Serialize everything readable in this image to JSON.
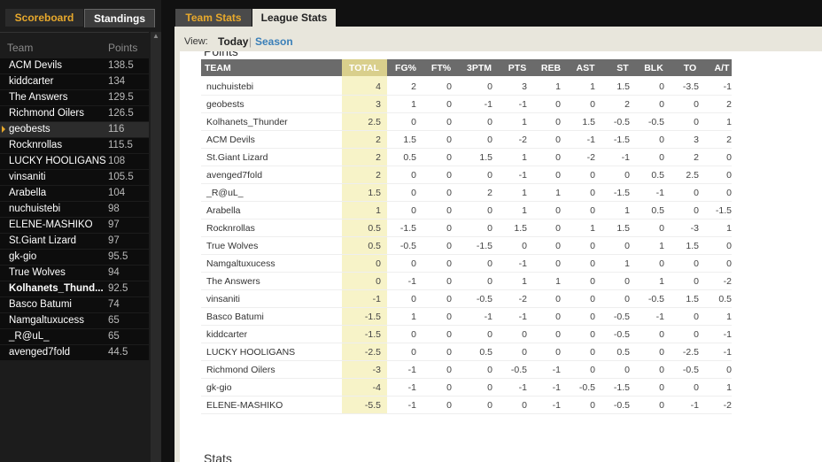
{
  "left_tabs": [
    "Scoreboard",
    "Standings"
  ],
  "standings": {
    "headers": [
      "Team",
      "Points"
    ],
    "rows": [
      [
        "ACM Devils",
        138.5
      ],
      [
        "kiddcarter",
        134
      ],
      [
        "The Answers",
        129.5
      ],
      [
        "Richmond Oilers",
        126.5
      ],
      [
        "geobests",
        116
      ],
      [
        "Rocknrollas",
        115.5
      ],
      [
        "LUCKY HOOLIGANS",
        108
      ],
      [
        "vinsaniti",
        105.5
      ],
      [
        "Arabella",
        104
      ],
      [
        "nuchuistebi",
        98
      ],
      [
        "ELENE-MASHIKO",
        97
      ],
      [
        "St.Giant Lizard",
        97
      ],
      [
        "gk-gio",
        95.5
      ],
      [
        "True Wolves",
        94
      ],
      [
        "Kolhanets_Thund...",
        92.5
      ],
      [
        "Basco Batumi",
        74
      ],
      [
        "Namgaltuxucess",
        65
      ],
      [
        "_R@uL_",
        65
      ],
      [
        "avenged7fold",
        44.5
      ]
    ]
  },
  "right_tabs": [
    "Team Stats",
    "League Stats"
  ],
  "view": {
    "label": "View:",
    "options": [
      "Today",
      "Season"
    ]
  },
  "section_title": "Points",
  "table": {
    "headers": [
      "TEAM",
      "TOTAL",
      "FG%",
      "FT%",
      "3PTM",
      "PTS",
      "REB",
      "AST",
      "ST",
      "BLK",
      "TO",
      "A/T"
    ],
    "rows": [
      [
        "nuchuistebi",
        4,
        2,
        0,
        0,
        3,
        1,
        1,
        1.5,
        0,
        -3.5,
        -1
      ],
      [
        "geobests",
        3,
        1,
        0,
        -1,
        -1,
        0,
        0,
        2,
        0,
        0,
        2
      ],
      [
        "Kolhanets_Thunder",
        2.5,
        0,
        0,
        0,
        1,
        0,
        1.5,
        -0.5,
        -0.5,
        0,
        1
      ],
      [
        "ACM Devils",
        2,
        1.5,
        0,
        0,
        -2,
        0,
        -1,
        -1.5,
        0,
        3,
        2
      ],
      [
        "St.Giant Lizard",
        2,
        0.5,
        0,
        1.5,
        1,
        0,
        -2,
        -1,
        0,
        2,
        0
      ],
      [
        "avenged7fold",
        2,
        0,
        0,
        0,
        -1,
        0,
        0,
        0,
        0.5,
        2.5,
        0
      ],
      [
        "_R@uL_",
        1.5,
        0,
        0,
        2,
        1,
        1,
        0,
        -1.5,
        -1,
        0,
        0
      ],
      [
        "Arabella",
        1,
        0,
        0,
        0,
        1,
        0,
        0,
        1,
        0.5,
        0,
        -1.5
      ],
      [
        "Rocknrollas",
        0.5,
        -1.5,
        0,
        0,
        1.5,
        0,
        1,
        1.5,
        0,
        -3,
        1
      ],
      [
        "True Wolves",
        0.5,
        -0.5,
        0,
        -1.5,
        0,
        0,
        0,
        0,
        1,
        1.5,
        0
      ],
      [
        "Namgaltuxucess",
        0,
        0,
        0,
        0,
        -1,
        0,
        0,
        1,
        0,
        0,
        0
      ],
      [
        "The Answers",
        0,
        -1,
        0,
        0,
        1,
        1,
        0,
        0,
        1,
        0,
        -2
      ],
      [
        "vinsaniti",
        -1,
        0,
        0,
        -0.5,
        -2,
        0,
        0,
        0,
        -0.5,
        1.5,
        0.5
      ],
      [
        "Basco Batumi",
        -1.5,
        1,
        0,
        -1,
        -1,
        0,
        0,
        -0.5,
        -1,
        0,
        1
      ],
      [
        "kiddcarter",
        -1.5,
        0,
        0,
        0,
        0,
        0,
        0,
        -0.5,
        0,
        0,
        -1
      ],
      [
        "LUCKY HOOLIGANS",
        -2.5,
        0,
        0,
        0.5,
        0,
        0,
        0,
        0.5,
        0,
        -2.5,
        -1
      ],
      [
        "Richmond Oilers",
        -3,
        -1,
        0,
        0,
        -0.5,
        -1,
        0,
        0,
        0,
        -0.5,
        0
      ],
      [
        "gk-gio",
        -4,
        -1,
        0,
        0,
        -1,
        -1,
        -0.5,
        -1.5,
        0,
        0,
        1
      ],
      [
        "ELENE-MASHIKO",
        -5.5,
        -1,
        0,
        0,
        0,
        -1,
        0,
        -0.5,
        0,
        -1,
        -2
      ]
    ]
  },
  "footer_title": "Stats"
}
